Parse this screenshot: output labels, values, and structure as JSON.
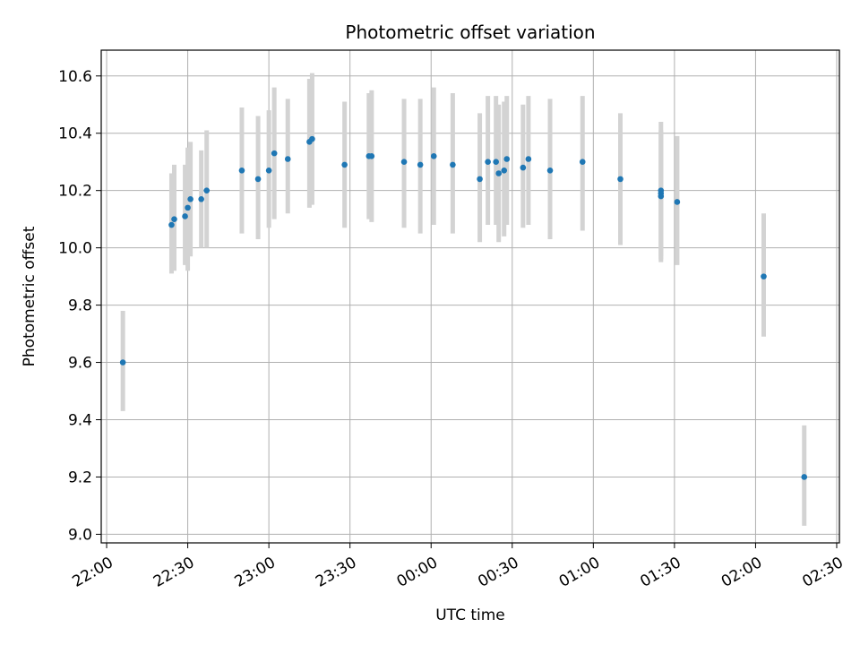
{
  "chart_data": {
    "type": "scatter",
    "title": "Photometric offset variation",
    "xlabel": "UTC time",
    "ylabel": "Photometric offset",
    "grid": true,
    "ylim": [
      8.97,
      10.69
    ],
    "xlim": [
      "21:58",
      "23:59 +1 02:31"
    ],
    "x_range": {
      "start": "21:58",
      "end": "02:31"
    },
    "yticks": [
      "9.0",
      "9.2",
      "9.4",
      "9.6",
      "9.8",
      "10.0",
      "10.2",
      "10.4",
      "10.6"
    ],
    "xticks": [
      "22:00",
      "22:30",
      "23:00",
      "23:30",
      "00:00",
      "00:30",
      "01:00",
      "01:30",
      "02:00",
      "02:30"
    ],
    "colors": {
      "point": "#1f77b4",
      "errorbar": "#d3d3d3",
      "grid": "#b0b0b0"
    },
    "series": [
      {
        "points": [
          {
            "t": "22:06",
            "y": 9.6,
            "lo": 9.43,
            "hi": 9.78
          },
          {
            "t": "22:24",
            "y": 10.08,
            "lo": 9.91,
            "hi": 10.26
          },
          {
            "t": "22:25",
            "y": 10.1,
            "lo": 9.92,
            "hi": 10.29
          },
          {
            "t": "22:29",
            "y": 10.11,
            "lo": 9.94,
            "hi": 10.29
          },
          {
            "t": "22:30",
            "y": 10.14,
            "lo": 9.92,
            "hi": 10.35
          },
          {
            "t": "22:31",
            "y": 10.17,
            "lo": 9.97,
            "hi": 10.37
          },
          {
            "t": "22:35",
            "y": 10.17,
            "lo": 10.0,
            "hi": 10.34
          },
          {
            "t": "22:37",
            "y": 10.2,
            "lo": 10.0,
            "hi": 10.41
          },
          {
            "t": "22:50",
            "y": 10.27,
            "lo": 10.05,
            "hi": 10.49
          },
          {
            "t": "22:56",
            "y": 10.24,
            "lo": 10.03,
            "hi": 10.46
          },
          {
            "t": "23:00",
            "y": 10.27,
            "lo": 10.07,
            "hi": 10.48
          },
          {
            "t": "23:02",
            "y": 10.33,
            "lo": 10.1,
            "hi": 10.56
          },
          {
            "t": "23:07",
            "y": 10.31,
            "lo": 10.12,
            "hi": 10.52
          },
          {
            "t": "23:15",
            "y": 10.37,
            "lo": 10.14,
            "hi": 10.59
          },
          {
            "t": "23:16",
            "y": 10.38,
            "lo": 10.15,
            "hi": 10.61
          },
          {
            "t": "23:28",
            "y": 10.29,
            "lo": 10.07,
            "hi": 10.51
          },
          {
            "t": "23:37",
            "y": 10.32,
            "lo": 10.1,
            "hi": 10.54
          },
          {
            "t": "23:38",
            "y": 10.32,
            "lo": 10.09,
            "hi": 10.55
          },
          {
            "t": "23:50",
            "y": 10.3,
            "lo": 10.07,
            "hi": 10.52
          },
          {
            "t": "23:56",
            "y": 10.29,
            "lo": 10.05,
            "hi": 10.52
          },
          {
            "t": "00:01",
            "y": 10.32,
            "lo": 10.08,
            "hi": 10.56
          },
          {
            "t": "00:08",
            "y": 10.29,
            "lo": 10.05,
            "hi": 10.54
          },
          {
            "t": "00:18",
            "y": 10.24,
            "lo": 10.02,
            "hi": 10.47
          },
          {
            "t": "00:21",
            "y": 10.3,
            "lo": 10.08,
            "hi": 10.53
          },
          {
            "t": "00:24",
            "y": 10.3,
            "lo": 10.08,
            "hi": 10.53
          },
          {
            "t": "00:25",
            "y": 10.26,
            "lo": 10.02,
            "hi": 10.5
          },
          {
            "t": "00:27",
            "y": 10.27,
            "lo": 10.04,
            "hi": 10.51
          },
          {
            "t": "00:28",
            "y": 10.31,
            "lo": 10.08,
            "hi": 10.53
          },
          {
            "t": "00:34",
            "y": 10.28,
            "lo": 10.07,
            "hi": 10.5
          },
          {
            "t": "00:36",
            "y": 10.31,
            "lo": 10.08,
            "hi": 10.53
          },
          {
            "t": "00:44",
            "y": 10.27,
            "lo": 10.03,
            "hi": 10.52
          },
          {
            "t": "00:56",
            "y": 10.3,
            "lo": 10.06,
            "hi": 10.53
          },
          {
            "t": "01:10",
            "y": 10.24,
            "lo": 10.01,
            "hi": 10.47
          },
          {
            "t": "01:25",
            "y": 10.18,
            "lo": 9.96,
            "hi": 10.4
          },
          {
            "t": "01:25",
            "y": 10.19,
            "lo": 9.97,
            "hi": 10.41
          },
          {
            "t": "01:25",
            "y": 10.2,
            "lo": 9.95,
            "hi": 10.44
          },
          {
            "t": "01:31",
            "y": 10.16,
            "lo": 9.94,
            "hi": 10.39
          },
          {
            "t": "02:03",
            "y": 9.9,
            "lo": 9.69,
            "hi": 10.12
          },
          {
            "t": "02:18",
            "y": 9.2,
            "lo": 9.03,
            "hi": 9.38
          }
        ]
      }
    ]
  }
}
